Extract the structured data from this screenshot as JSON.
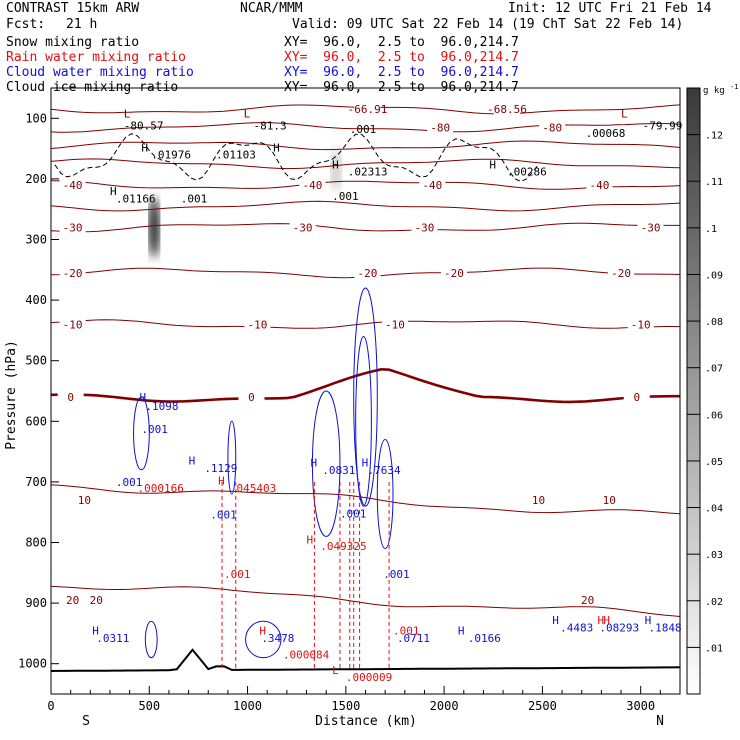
{
  "header": {
    "model": "CONTRAST 15km ARW",
    "org": "NCAR/MMM",
    "init": "Init: 12 UTC Fri 21 Feb 14",
    "fcst_label": "Fcst:",
    "fcst_value": "21 h",
    "valid": "Valid: 09 UTC Sat 22 Feb 14 (19 ChT Sat 22 Feb 14)",
    "fields": [
      {
        "label": "Snow mixing ratio",
        "xy": "XY=  96.0,  2.5 to  96.0,214.7",
        "color": "#000000"
      },
      {
        "label": "Rain water mixing ratio",
        "xy": "XY=  96.0,  2.5 to  96.0,214.7",
        "color": "#e01010"
      },
      {
        "label": "Cloud water mixing ratio",
        "xy": "XY=  96.0,  2.5 to  96.0,214.7",
        "color": "#1010d0"
      },
      {
        "label": "Cloud ice mixing ratio",
        "xy": "XY=  96.0,  2.5 to  96.0,214.7",
        "color": "#000000"
      }
    ]
  },
  "chart_data": {
    "type": "contour cross-section",
    "xlabel": "Distance (km)",
    "ylabel": "Pressure (hPa)",
    "xlim": [
      0,
      3200
    ],
    "ylim": [
      1050,
      50
    ],
    "x_ticks": [
      0,
      500,
      1000,
      1500,
      2000,
      2500,
      3000
    ],
    "y_ticks": [
      100,
      200,
      300,
      400,
      500,
      600,
      700,
      800,
      900,
      1000
    ],
    "x_end_labels": {
      "left": "S",
      "right": "N"
    },
    "colorbar": {
      "unit": "g kg",
      "unit_exp": "-1",
      "ticks": [
        ".01",
        ".02",
        ".03",
        ".04",
        ".05",
        ".06",
        ".07",
        ".08",
        ".09",
        ".1",
        ".11",
        ".12"
      ],
      "range": [
        0,
        0.13
      ]
    },
    "temperature_contours": {
      "color": "#800000",
      "zero_color": "#800000",
      "levels": [
        {
          "level": -60,
          "pressure": 85,
          "labels": [
            {
              "x": 1610,
              "text": "-66.91"
            },
            {
              "x": 2320,
              "text": "-68.56"
            }
          ]
        },
        {
          "level": -80,
          "pressure": 115,
          "labels": [
            {
              "x": 1980,
              "text": "-80"
            },
            {
              "x": 2550,
              "text": "-80"
            }
          ]
        },
        {
          "level": -50,
          "pressure": 145,
          "labels": []
        },
        {
          "level": -45,
          "pressure": 175,
          "labels": []
        },
        {
          "level": -40,
          "pressure": 210,
          "labels": [
            {
              "x": 110,
              "text": "-40"
            },
            {
              "x": 1330,
              "text": "-40"
            },
            {
              "x": 1940,
              "text": "-40"
            },
            {
              "x": 2790,
              "text": "-40"
            }
          ]
        },
        {
          "level": -35,
          "pressure": 245,
          "labels": []
        },
        {
          "level": -30,
          "pressure": 280,
          "labels": [
            {
              "x": 110,
              "text": "-30"
            },
            {
              "x": 1280,
              "text": "-30"
            },
            {
              "x": 1900,
              "text": "-30"
            },
            {
              "x": 3050,
              "text": "-30"
            }
          ]
        },
        {
          "level": -20,
          "pressure": 355,
          "labels": [
            {
              "x": 110,
              "text": "-20"
            },
            {
              "x": 1610,
              "text": "-20"
            },
            {
              "x": 2050,
              "text": "-20"
            },
            {
              "x": 2900,
              "text": "-20"
            }
          ]
        },
        {
          "level": -10,
          "pressure": 440,
          "labels": [
            {
              "x": 110,
              "text": "-10"
            },
            {
              "x": 1050,
              "text": "-10"
            },
            {
              "x": 1750,
              "text": "-10"
            },
            {
              "x": 3000,
              "text": "-10"
            }
          ]
        },
        {
          "level": 0,
          "pressure": 560,
          "labels": [
            {
              "x": 100,
              "text": "0"
            },
            {
              "x": 1020,
              "text": "0"
            },
            {
              "x": 2980,
              "text": "0"
            }
          ]
        },
        {
          "level": 10,
          "pressure": 730,
          "labels": [
            {
              "x": 170,
              "text": "10"
            },
            {
              "x": 2480,
              "text": "10"
            },
            {
              "x": 2840,
              "text": "10"
            }
          ]
        },
        {
          "level": 20,
          "pressure": 895,
          "labels": [
            {
              "x": 110,
              "text": "20"
            },
            {
              "x": 230,
              "text": "20"
            },
            {
              "x": 2730,
              "text": "20"
            }
          ]
        }
      ],
      "minima_labels": [
        {
          "x": 370,
          "p": 112,
          "text": "-80.57"
        },
        {
          "x": 1030,
          "p": 112,
          "text": "-81.3"
        },
        {
          "x": 3010,
          "p": 112,
          "text": "-79.99"
        }
      ]
    },
    "cloud_ice_labels": [
      {
        "x": 510,
        "p": 160,
        "text": ".01976"
      },
      {
        "x": 840,
        "p": 160,
        "text": ".01103"
      },
      {
        "x": 1510,
        "p": 188,
        "text": ".02313"
      },
      {
        "x": 2320,
        "p": 188,
        "text": ".00286"
      },
      {
        "x": 330,
        "p": 232,
        "text": ".01166"
      },
      {
        "x": 660,
        "p": 232,
        "text": ".001"
      },
      {
        "x": 1430,
        "p": 228,
        "text": ".001"
      },
      {
        "x": 1520,
        "p": 118,
        "text": ".001"
      },
      {
        "x": 2720,
        "p": 124,
        "text": ".00068"
      }
    ],
    "cloud_water_labels": [
      {
        "x": 480,
        "p": 575,
        "text": ".1098"
      },
      {
        "x": 460,
        "p": 613,
        "text": ".001"
      },
      {
        "x": 780,
        "p": 677,
        "text": ".1129"
      },
      {
        "x": 330,
        "p": 700,
        "text": ".001"
      },
      {
        "x": 810,
        "p": 754,
        "text": ".001"
      },
      {
        "x": 1380,
        "p": 680,
        "text": ".0831"
      },
      {
        "x": 1610,
        "p": 680,
        "text": ".7634"
      },
      {
        "x": 1470,
        "p": 752,
        "text": ".001"
      },
      {
        "x": 1690,
        "p": 852,
        "text": ".001"
      },
      {
        "x": 230,
        "p": 958,
        "text": ".0311"
      },
      {
        "x": 1070,
        "p": 958,
        "text": ".3478"
      },
      {
        "x": 1760,
        "p": 958,
        "text": ".0711"
      },
      {
        "x": 2120,
        "p": 958,
        "text": ".0166"
      },
      {
        "x": 2590,
        "p": 940,
        "text": ".4483"
      },
      {
        "x": 2790,
        "p": 940,
        "text": ".08293"
      },
      {
        "x": 3040,
        "p": 940,
        "text": ".1848"
      }
    ],
    "rain_water_labels": [
      {
        "x": 440,
        "p": 710,
        "text": ".000166"
      },
      {
        "x": 910,
        "p": 710,
        "text": ".045403"
      },
      {
        "x": 1370,
        "p": 806,
        "text": ".049325"
      },
      {
        "x": 880,
        "p": 852,
        "text": ".001"
      },
      {
        "x": 1180,
        "p": 985,
        "text": ".000084"
      },
      {
        "x": 1500,
        "p": 1022,
        "text": ".000009"
      },
      {
        "x": 1740,
        "p": 945,
        "text": ".001"
      }
    ],
    "h_markers": [
      {
        "x": 460,
        "p": 148,
        "color": "#000000"
      },
      {
        "x": 1130,
        "p": 148,
        "color": "#000000"
      },
      {
        "x": 1430,
        "p": 176,
        "color": "#000000"
      },
      {
        "x": 2230,
        "p": 176,
        "color": "#000000"
      },
      {
        "x": 300,
        "p": 220,
        "color": "#000000"
      },
      {
        "x": 450,
        "p": 560,
        "color": "#1010d0"
      },
      {
        "x": 700,
        "p": 665,
        "color": "#1010d0"
      },
      {
        "x": 1320,
        "p": 668,
        "color": "#1010d0"
      },
      {
        "x": 1580,
        "p": 668,
        "color": "#1010d0"
      },
      {
        "x": 850,
        "p": 698,
        "color": "#e01010"
      },
      {
        "x": 1300,
        "p": 795,
        "color": "#e01010"
      },
      {
        "x": 2550,
        "p": 928,
        "color": "#1010d0"
      },
      {
        "x": 2780,
        "p": 928,
        "color": "#e01010"
      },
      {
        "x": 2810,
        "p": 928,
        "color": "#e01010"
      },
      {
        "x": 3020,
        "p": 928,
        "color": "#1010d0"
      },
      {
        "x": 2070,
        "p": 945,
        "color": "#1010d0"
      },
      {
        "x": 210,
        "p": 945,
        "color": "#1010d0"
      },
      {
        "x": 1060,
        "p": 945,
        "color": "#e01010"
      }
    ],
    "l_markers": [
      {
        "x": 370,
        "p": 92,
        "color": "#800000"
      },
      {
        "x": 980,
        "p": 92,
        "color": "#800000"
      },
      {
        "x": 2900,
        "p": 92,
        "color": "#800000"
      },
      {
        "x": 1430,
        "p": 1010,
        "color": "#e01010"
      }
    ],
    "snow_plumes": [
      {
        "x": 525,
        "p_top": 230,
        "p_bot": 330,
        "intensity": 0.13
      },
      {
        "x": 1450,
        "p_top": 150,
        "p_bot": 220,
        "intensity": 0.03
      }
    ]
  }
}
